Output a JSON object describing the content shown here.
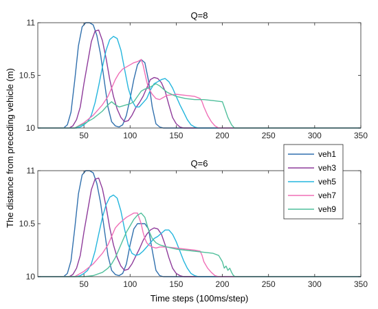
{
  "figure": {
    "ylabel": "The distance from preceding vehicle (m)",
    "xlabel": "Time steps (100ms/step)"
  },
  "chart_data": [
    {
      "type": "line",
      "title": "Q=8",
      "xlabel": "",
      "ylabel": "",
      "xlim": [
        0,
        350
      ],
      "ylim": [
        10,
        11
      ],
      "xticks": [
        50,
        100,
        150,
        200,
        250,
        300,
        350
      ],
      "yticks": [
        10,
        10.5,
        11
      ],
      "ytick_labels": [
        "10",
        "10.5",
        "11"
      ],
      "grid": false,
      "series": [
        {
          "name": "veh1",
          "color": "#2f6fad",
          "x": [
            0,
            28,
            32,
            36,
            40,
            44,
            48,
            52,
            56,
            60,
            64,
            68,
            72,
            76,
            80,
            84,
            88,
            92,
            96,
            100,
            104,
            108,
            112,
            116,
            120,
            124,
            128,
            132,
            136,
            140,
            350
          ],
          "y": [
            10,
            10,
            10.03,
            10.15,
            10.45,
            10.78,
            10.96,
            11,
            11,
            10.98,
            10.88,
            10.7,
            10.45,
            10.2,
            10.06,
            10.02,
            10.01,
            10.03,
            10.12,
            10.28,
            10.46,
            10.6,
            10.65,
            10.62,
            10.45,
            10.2,
            10.04,
            10.01,
            10,
            10,
            10
          ]
        },
        {
          "name": "veh3",
          "color": "#8e3a9a",
          "x": [
            0,
            34,
            38,
            42,
            46,
            50,
            54,
            58,
            62,
            66,
            70,
            74,
            78,
            82,
            86,
            90,
            94,
            98,
            102,
            106,
            110,
            114,
            118,
            122,
            126,
            130,
            134,
            138,
            142,
            146,
            150,
            154,
            158,
            350
          ],
          "y": [
            10,
            10,
            10.02,
            10.08,
            10.2,
            10.42,
            10.62,
            10.82,
            10.92,
            10.93,
            10.83,
            10.66,
            10.46,
            10.3,
            10.18,
            10.1,
            10.06,
            10.07,
            10.12,
            10.19,
            10.24,
            10.3,
            10.38,
            10.46,
            10.48,
            10.47,
            10.43,
            10.35,
            10.22,
            10.1,
            10.04,
            10.01,
            10,
            10
          ]
        },
        {
          "name": "veh5",
          "color": "#23b5dd",
          "x": [
            0,
            42,
            46,
            50,
            54,
            58,
            62,
            66,
            70,
            74,
            78,
            82,
            86,
            90,
            94,
            98,
            102,
            106,
            110,
            114,
            118,
            122,
            126,
            130,
            134,
            138,
            142,
            146,
            150,
            154,
            158,
            162,
            166,
            170,
            174,
            350
          ],
          "y": [
            10,
            10,
            10.01,
            10.03,
            10.06,
            10.12,
            10.24,
            10.4,
            10.58,
            10.74,
            10.84,
            10.87,
            10.85,
            10.74,
            10.56,
            10.38,
            10.26,
            10.2,
            10.2,
            10.24,
            10.28,
            10.36,
            10.42,
            10.44,
            10.46,
            10.47,
            10.44,
            10.38,
            10.3,
            10.22,
            10.15,
            10.08,
            10.03,
            10.01,
            10,
            10
          ]
        },
        {
          "name": "veh7",
          "color": "#f06eb6",
          "x": [
            0,
            40,
            50,
            60,
            70,
            76,
            80,
            84,
            88,
            92,
            96,
            100,
            104,
            108,
            112,
            114,
            116,
            118,
            120,
            124,
            128,
            132,
            136,
            140,
            150,
            160,
            170,
            176,
            178,
            180,
            184,
            188,
            192,
            196,
            350
          ],
          "y": [
            10,
            10,
            10.05,
            10.12,
            10.22,
            10.3,
            10.38,
            10.46,
            10.52,
            10.56,
            10.58,
            10.6,
            10.62,
            10.63,
            10.65,
            10.6,
            10.52,
            10.44,
            10.38,
            10.32,
            10.28,
            10.27,
            10.29,
            10.31,
            10.32,
            10.31,
            10.3,
            10.28,
            10.25,
            10.2,
            10.12,
            10.06,
            10.02,
            10,
            10
          ]
        },
        {
          "name": "veh9",
          "color": "#4fbf9b",
          "x": [
            0,
            40,
            50,
            60,
            70,
            76,
            80,
            84,
            88,
            92,
            96,
            100,
            104,
            108,
            112,
            116,
            120,
            124,
            128,
            132,
            140,
            150,
            160,
            170,
            180,
            190,
            200,
            202,
            206,
            210,
            213,
            350
          ],
          "y": [
            10,
            10,
            10.04,
            10.09,
            10.16,
            10.22,
            10.25,
            10.22,
            10.2,
            10.21,
            10.22,
            10.23,
            10.25,
            10.3,
            10.35,
            10.37,
            10.38,
            10.4,
            10.42,
            10.4,
            10.34,
            10.3,
            10.28,
            10.27,
            10.27,
            10.26,
            10.25,
            10.2,
            10.1,
            10.03,
            10,
            10
          ]
        }
      ]
    },
    {
      "type": "line",
      "title": "Q=6",
      "xlabel": "",
      "ylabel": "",
      "xlim": [
        0,
        350
      ],
      "ylim": [
        10,
        11
      ],
      "xticks": [
        50,
        100,
        150,
        200,
        250,
        300,
        350
      ],
      "yticks": [
        10,
        10.5,
        11
      ],
      "ytick_labels": [
        "10",
        "10.5",
        "11"
      ],
      "grid": false,
      "series": [
        {
          "name": "veh1",
          "color": "#2f6fad",
          "x": [
            0,
            28,
            32,
            36,
            40,
            44,
            48,
            52,
            56,
            60,
            64,
            68,
            72,
            76,
            80,
            84,
            88,
            92,
            96,
            100,
            104,
            108,
            112,
            116,
            120,
            124,
            128,
            132,
            136,
            140,
            350
          ],
          "y": [
            10,
            10,
            10.03,
            10.15,
            10.45,
            10.78,
            10.96,
            11,
            11,
            10.98,
            10.88,
            10.7,
            10.45,
            10.2,
            10.06,
            10.02,
            10.01,
            10.03,
            10.12,
            10.3,
            10.45,
            10.5,
            10.5,
            10.5,
            10.45,
            10.25,
            10.06,
            10.01,
            10,
            10,
            10
          ]
        },
        {
          "name": "veh3",
          "color": "#8e3a9a",
          "x": [
            0,
            34,
            38,
            42,
            46,
            50,
            54,
            58,
            62,
            66,
            70,
            74,
            78,
            82,
            86,
            90,
            94,
            98,
            102,
            106,
            110,
            114,
            118,
            122,
            126,
            130,
            134,
            138,
            142,
            146,
            150,
            154,
            158,
            350
          ],
          "y": [
            10,
            10,
            10.02,
            10.08,
            10.2,
            10.42,
            10.62,
            10.82,
            10.92,
            10.93,
            10.83,
            10.66,
            10.46,
            10.3,
            10.18,
            10.1,
            10.06,
            10.07,
            10.12,
            10.19,
            10.26,
            10.34,
            10.4,
            10.44,
            10.46,
            10.45,
            10.4,
            10.3,
            10.18,
            10.08,
            10.03,
            10.01,
            10,
            10
          ]
        },
        {
          "name": "veh5",
          "color": "#23b5dd",
          "x": [
            0,
            42,
            46,
            50,
            54,
            58,
            62,
            66,
            70,
            74,
            78,
            82,
            86,
            90,
            94,
            98,
            102,
            106,
            110,
            114,
            118,
            122,
            126,
            130,
            134,
            138,
            142,
            146,
            150,
            154,
            158,
            162,
            166,
            170,
            174,
            350
          ],
          "y": [
            10,
            10,
            10.01,
            10.03,
            10.06,
            10.12,
            10.24,
            10.4,
            10.56,
            10.68,
            10.75,
            10.77,
            10.74,
            10.62,
            10.45,
            10.3,
            10.22,
            10.2,
            10.21,
            10.24,
            10.28,
            10.32,
            10.36,
            10.38,
            10.41,
            10.44,
            10.44,
            10.4,
            10.33,
            10.24,
            10.15,
            10.08,
            10.03,
            10.01,
            10,
            10
          ]
        },
        {
          "name": "veh7",
          "color": "#f06eb6",
          "x": [
            0,
            40,
            50,
            60,
            70,
            76,
            80,
            84,
            88,
            92,
            96,
            100,
            104,
            108,
            112,
            114,
            116,
            118,
            120,
            124,
            128,
            132,
            136,
            140,
            150,
            160,
            170,
            176,
            178,
            180,
            184,
            188,
            192,
            196,
            350
          ],
          "y": [
            10,
            10,
            10.05,
            10.12,
            10.22,
            10.3,
            10.38,
            10.46,
            10.5,
            10.53,
            10.56,
            10.58,
            10.6,
            10.6,
            10.5,
            10.42,
            10.36,
            10.32,
            10.3,
            10.28,
            10.27,
            10.28,
            10.28,
            10.28,
            10.27,
            10.26,
            10.25,
            10.24,
            10.2,
            10.14,
            10.08,
            10.04,
            10.01,
            10,
            10
          ]
        },
        {
          "name": "veh9",
          "color": "#4fbf9b",
          "x": [
            0,
            40,
            50,
            60,
            70,
            76,
            80,
            84,
            88,
            92,
            96,
            100,
            104,
            108,
            112,
            116,
            120,
            124,
            128,
            132,
            140,
            150,
            160,
            170,
            180,
            190,
            196,
            200,
            202,
            204,
            206,
            208,
            210,
            212,
            214,
            350
          ],
          "y": [
            10,
            10,
            10,
            10.01,
            10.04,
            10.08,
            10.12,
            10.18,
            10.26,
            10.34,
            10.42,
            10.48,
            10.54,
            10.58,
            10.6,
            10.56,
            10.44,
            10.36,
            10.32,
            10.3,
            10.28,
            10.26,
            10.25,
            10.24,
            10.23,
            10.22,
            10.2,
            10.14,
            10.08,
            10.1,
            10.06,
            10.08,
            10.04,
            10.01,
            10,
            10
          ]
        }
      ]
    }
  ]
}
